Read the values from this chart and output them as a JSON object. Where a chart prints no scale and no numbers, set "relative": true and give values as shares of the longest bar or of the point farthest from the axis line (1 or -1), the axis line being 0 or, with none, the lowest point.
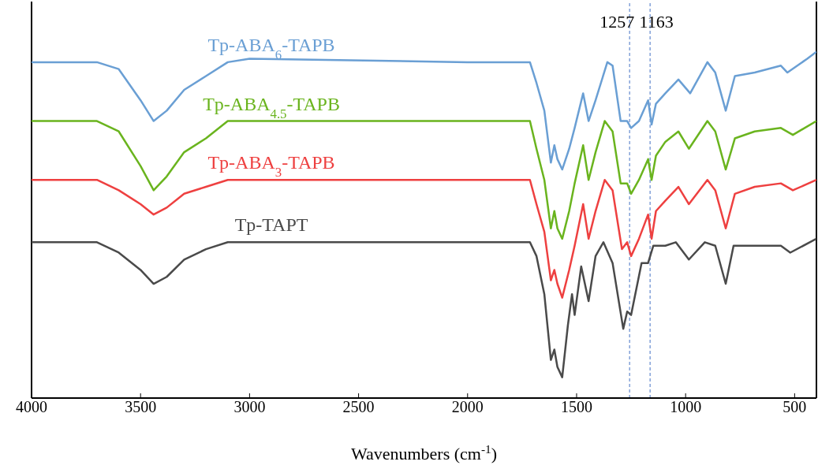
{
  "chart_data": {
    "type": "line",
    "xlabel": "Wavenumbers (cm$^{-1}$)",
    "relative": true,
    "xlim": [
      4000,
      400
    ],
    "xticks": [
      4000,
      3500,
      3000,
      2500,
      2000,
      1500,
      1000,
      500
    ],
    "marker": "none",
    "line_style": "solid",
    "ref_lines": [
      {
        "axis": "x",
        "value": 1257,
        "label": "1257",
        "color": "#4472c4",
        "line_style": "dashed"
      },
      {
        "axis": "x",
        "value": 1163,
        "label": "1163",
        "color": "#4472c4",
        "line_style": "dashed"
      }
    ],
    "series": [
      {
        "name": "Tp-ABA$_{6}$-TAPB",
        "color": "#6a9fd4",
        "x": [
          4000,
          3700,
          3600,
          3500,
          3440,
          3380,
          3300,
          3200,
          3100,
          3000,
          2000,
          1714,
          1684,
          1648,
          1618,
          1602,
          1588,
          1566,
          1534,
          1509,
          1470,
          1445,
          1413,
          1359,
          1335,
          1298,
          1268,
          1250,
          1214,
          1172,
          1156,
          1136,
          1093,
          1033,
          979,
          900,
          864,
          816,
          774,
          683,
          563,
          533,
          442,
          400
        ],
        "values": [
          0.97,
          0.97,
          0.95,
          0.86,
          0.8,
          0.83,
          0.89,
          0.93,
          0.97,
          0.98,
          0.97,
          0.97,
          0.91,
          0.83,
          0.68,
          0.73,
          0.69,
          0.66,
          0.72,
          0.78,
          0.88,
          0.8,
          0.86,
          0.97,
          0.96,
          0.8,
          0.8,
          0.78,
          0.8,
          0.86,
          0.79,
          0.85,
          0.88,
          0.92,
          0.88,
          0.97,
          0.94,
          0.83,
          0.93,
          0.94,
          0.96,
          0.94,
          0.98,
          1.0
        ]
      },
      {
        "name": "Tp-ABA$_{4.5}$-TAPB",
        "color": "#6ab41e",
        "x": [
          4000,
          3700,
          3600,
          3500,
          3440,
          3380,
          3300,
          3200,
          3100,
          2000,
          1714,
          1684,
          1648,
          1618,
          1602,
          1588,
          1566,
          1534,
          1509,
          1470,
          1445,
          1413,
          1371,
          1335,
          1298,
          1268,
          1250,
          1214,
          1172,
          1156,
          1136,
          1093,
          1033,
          985,
          900,
          864,
          816,
          774,
          683,
          563,
          508,
          400
        ],
        "values": [
          0.8,
          0.8,
          0.77,
          0.67,
          0.6,
          0.64,
          0.71,
          0.75,
          0.8,
          0.8,
          0.8,
          0.72,
          0.63,
          0.49,
          0.54,
          0.49,
          0.46,
          0.54,
          0.62,
          0.73,
          0.63,
          0.71,
          0.8,
          0.77,
          0.62,
          0.62,
          0.59,
          0.63,
          0.69,
          0.63,
          0.7,
          0.74,
          0.77,
          0.72,
          0.8,
          0.77,
          0.66,
          0.75,
          0.77,
          0.78,
          0.76,
          0.8
        ]
      },
      {
        "name": "Tp-ABA$_{3}$-TAPB",
        "color": "#ee4040",
        "x": [
          4000,
          3700,
          3600,
          3500,
          3440,
          3380,
          3300,
          3200,
          3100,
          2000,
          1714,
          1684,
          1648,
          1618,
          1602,
          1588,
          1566,
          1534,
          1509,
          1470,
          1445,
          1413,
          1371,
          1335,
          1292,
          1268,
          1250,
          1214,
          1172,
          1156,
          1136,
          1093,
          1033,
          985,
          900,
          864,
          816,
          774,
          683,
          563,
          508,
          400
        ],
        "values": [
          0.63,
          0.63,
          0.6,
          0.56,
          0.53,
          0.55,
          0.59,
          0.61,
          0.63,
          0.63,
          0.63,
          0.56,
          0.48,
          0.34,
          0.37,
          0.33,
          0.29,
          0.37,
          0.44,
          0.56,
          0.46,
          0.54,
          0.63,
          0.6,
          0.43,
          0.45,
          0.41,
          0.46,
          0.53,
          0.46,
          0.54,
          0.57,
          0.61,
          0.56,
          0.63,
          0.6,
          0.49,
          0.59,
          0.61,
          0.62,
          0.6,
          0.63
        ]
      },
      {
        "name": "Tp-TAPT",
        "color": "#4a4a4a",
        "x": [
          4000,
          3700,
          3600,
          3500,
          3440,
          3380,
          3300,
          3200,
          3100,
          2000,
          1714,
          1684,
          1648,
          1618,
          1602,
          1588,
          1566,
          1540,
          1521,
          1509,
          1479,
          1445,
          1413,
          1377,
          1335,
          1286,
          1268,
          1250,
          1202,
          1172,
          1148,
          1093,
          1045,
          985,
          912,
          864,
          816,
          780,
          683,
          563,
          520,
          400
        ],
        "values": [
          0.45,
          0.45,
          0.42,
          0.37,
          0.33,
          0.35,
          0.4,
          0.43,
          0.45,
          0.45,
          0.45,
          0.41,
          0.3,
          0.11,
          0.14,
          0.09,
          0.06,
          0.21,
          0.3,
          0.24,
          0.38,
          0.28,
          0.41,
          0.45,
          0.39,
          0.2,
          0.25,
          0.24,
          0.39,
          0.39,
          0.44,
          0.44,
          0.45,
          0.4,
          0.45,
          0.44,
          0.33,
          0.44,
          0.44,
          0.44,
          0.42,
          0.46
        ]
      }
    ]
  }
}
